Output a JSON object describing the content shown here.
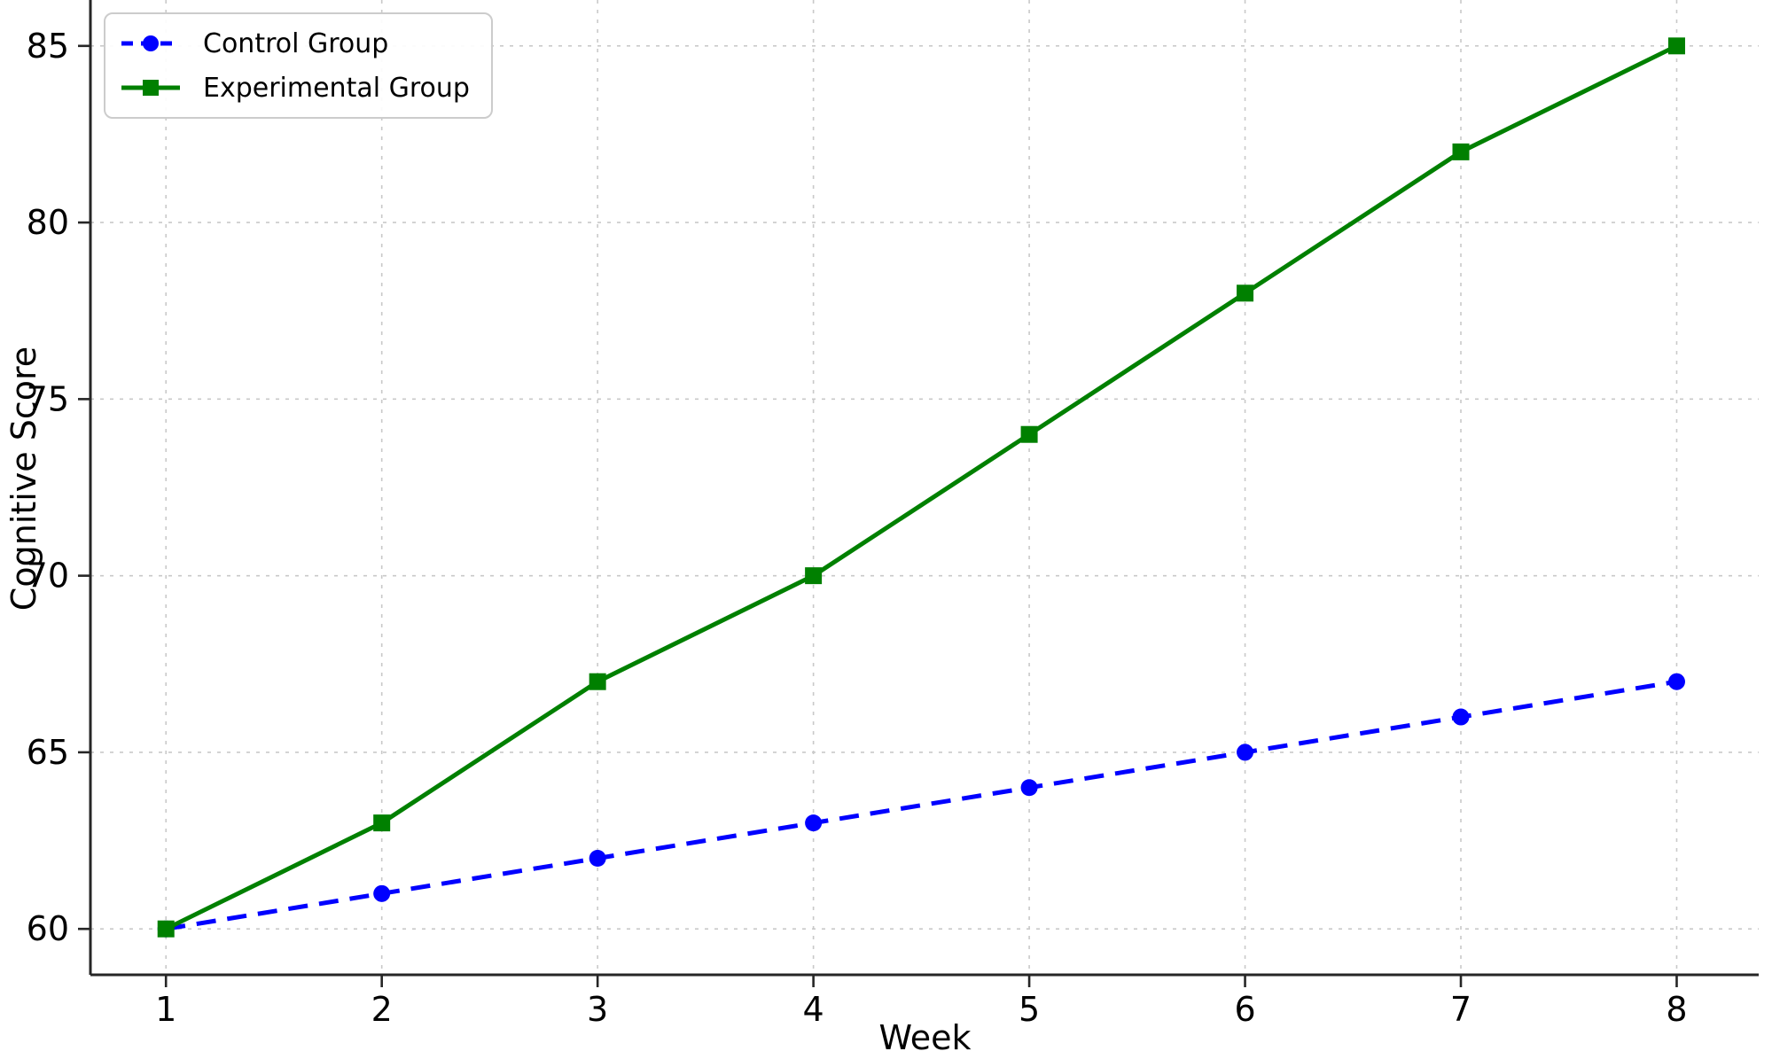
{
  "chart_data": {
    "type": "line",
    "title": "",
    "xlabel": "Week",
    "ylabel": "Cognitive Score",
    "x": [
      1,
      2,
      3,
      4,
      5,
      6,
      7,
      8
    ],
    "x_tick_labels": [
      "1",
      "2",
      "3",
      "4",
      "5",
      "6",
      "7",
      "8"
    ],
    "y_tick_values": [
      60,
      65,
      70,
      75,
      80,
      85
    ],
    "y_tick_labels": [
      "60",
      "65",
      "70",
      "75",
      "80",
      "85"
    ],
    "xlim": [
      0.65,
      8.38
    ],
    "ylim": [
      58.7,
      86.3
    ],
    "grid": true,
    "grid_style": "dashed",
    "legend_position": "upper-left",
    "series": [
      {
        "name": "Control Group",
        "values": [
          60,
          61,
          62,
          63,
          64,
          65,
          66,
          67
        ],
        "color": "#0000ff",
        "line_style": "dashed",
        "marker": "circle"
      },
      {
        "name": "Experimental Group",
        "values": [
          60,
          63,
          67,
          70,
          74,
          78,
          82,
          85
        ],
        "color": "#008000",
        "line_style": "solid",
        "marker": "square"
      }
    ]
  },
  "style_colors": {
    "gridline": "#c9c9c9",
    "spine": "#262626",
    "tick": "#262626",
    "text": "#000000",
    "background": "#ffffff"
  }
}
